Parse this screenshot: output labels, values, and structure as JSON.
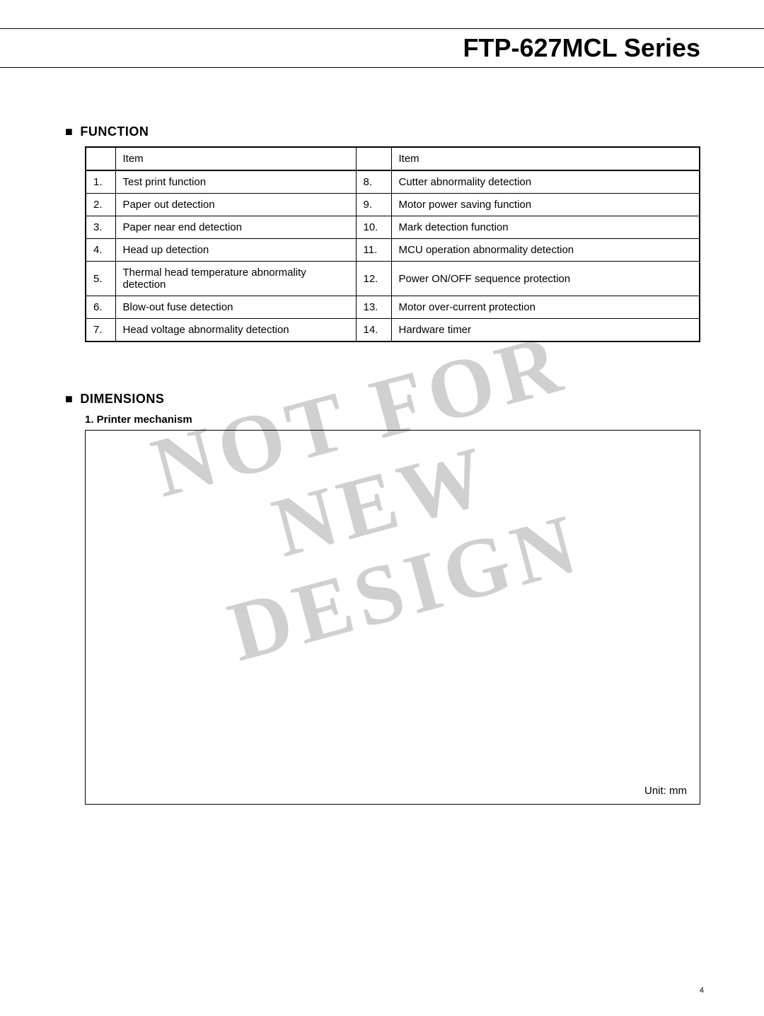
{
  "header": {
    "title": "FTP-627MCL Series"
  },
  "function_section": {
    "heading": "FUNCTION",
    "col_header_left": "Item",
    "col_header_right": "Item",
    "rows": [
      {
        "n1": "1.",
        "d1": "Test print function",
        "n2": "8.",
        "d2": "Cutter abnormality detection"
      },
      {
        "n1": "2.",
        "d1": "Paper out detection",
        "n2": "9.",
        "d2": "Motor power saving function"
      },
      {
        "n1": "3.",
        "d1": "Paper near end detection",
        "n2": "10.",
        "d2": "Mark detection function"
      },
      {
        "n1": "4.",
        "d1": "Head up detection",
        "n2": "11.",
        "d2": "MCU operation abnormality detection"
      },
      {
        "n1": "5.",
        "d1": "Thermal head temperature abnormality detection",
        "n2": "12.",
        "d2": "Power ON/OFF sequence protection"
      },
      {
        "n1": "6.",
        "d1": "Blow-out fuse detection",
        "n2": "13.",
        "d2": "Motor over-current protection"
      },
      {
        "n1": "7.",
        "d1": "Head voltage abnormality detection",
        "n2": "14.",
        "d2": "Hardware timer"
      }
    ]
  },
  "dimensions_section": {
    "heading": "DIMENSIONS",
    "sub_heading": "1. Printer mechanism",
    "unit_label": "Unit: mm"
  },
  "watermark": {
    "line1": "NOT FOR NEW",
    "line2": "DESIGN"
  },
  "page_number": "4",
  "style": {
    "text_color": "#000000",
    "watermark_color": "#d0d0d0",
    "border_color": "#000000",
    "background": "#ffffff"
  }
}
